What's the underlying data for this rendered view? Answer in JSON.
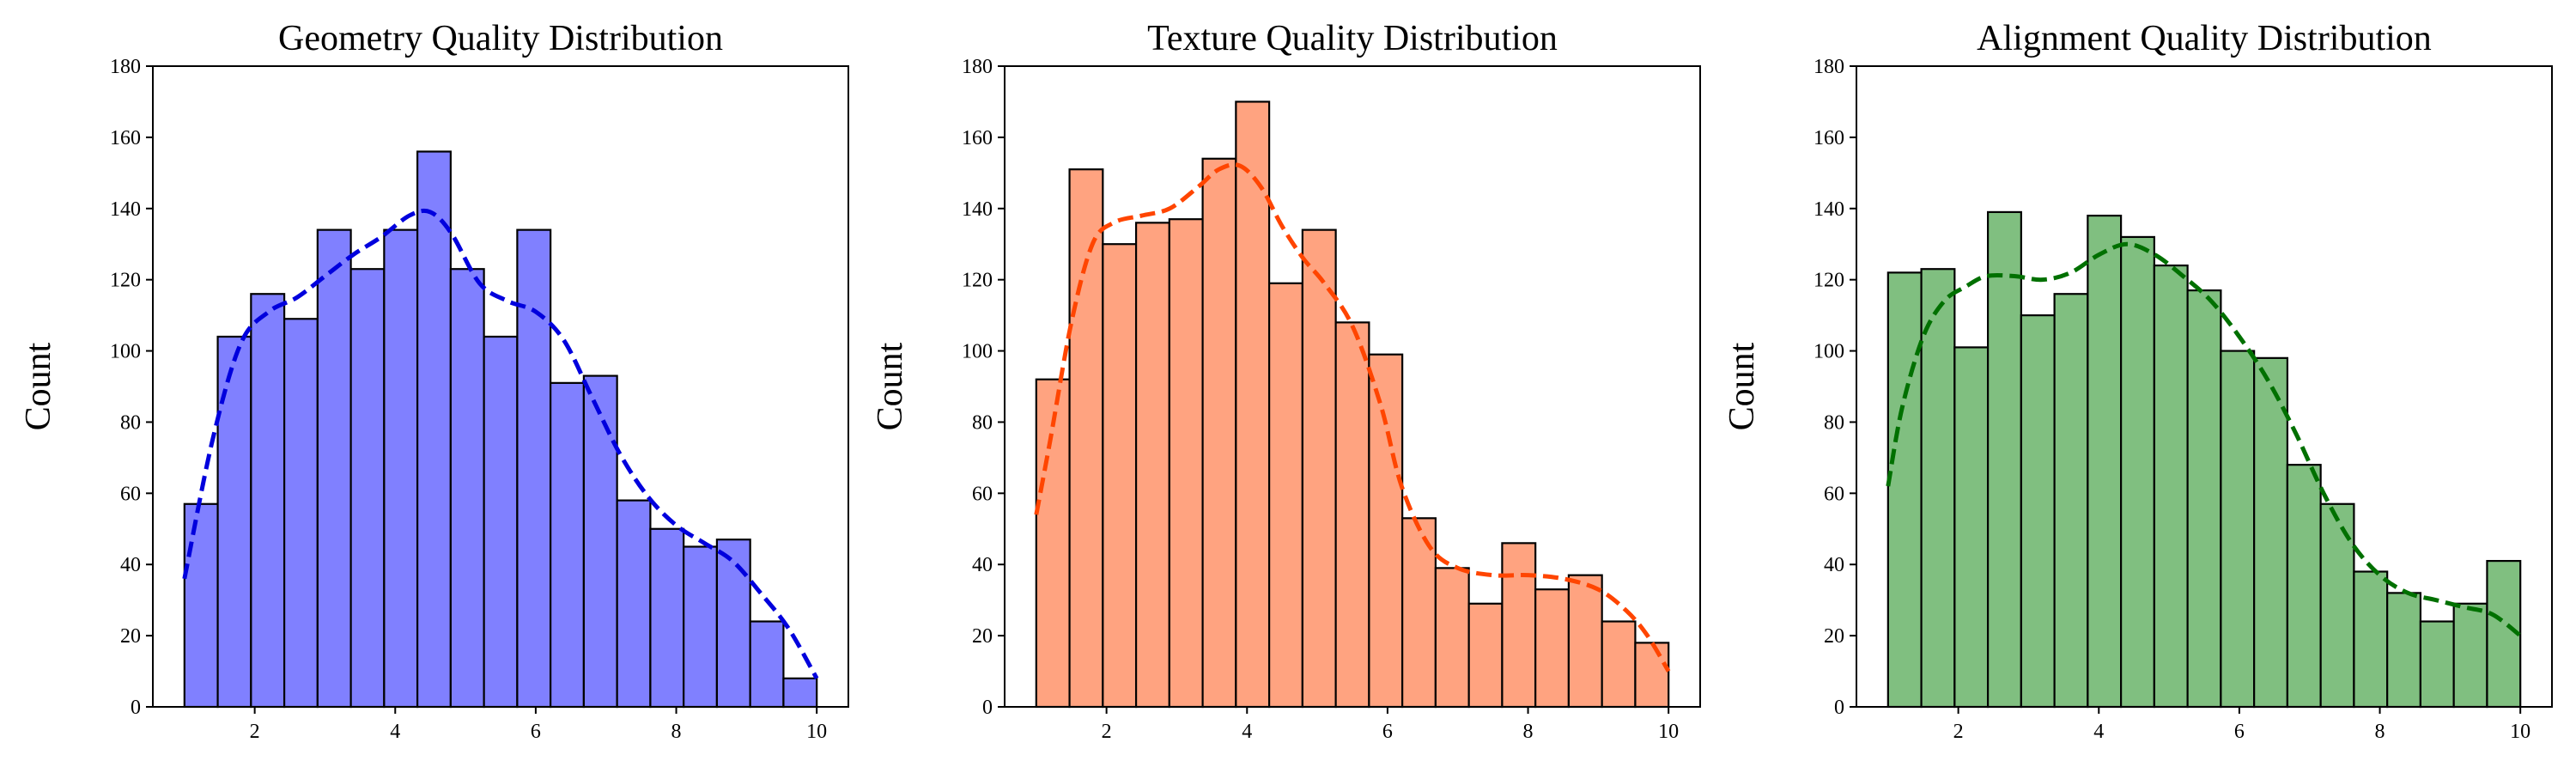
{
  "chart_data": [
    {
      "type": "bar",
      "title": "Geometry Quality Distribution",
      "xlabel": "",
      "ylabel": "Count",
      "xlim": [
        0.55,
        10.45
      ],
      "ylim": [
        0,
        180
      ],
      "x_ticks": [
        2,
        4,
        6,
        8,
        10
      ],
      "y_ticks": [
        0,
        20,
        40,
        60,
        80,
        100,
        120,
        140,
        160,
        180
      ],
      "bin_start": 1,
      "bin_end": 10,
      "counts": [
        57,
        104,
        116,
        109,
        134,
        123,
        134,
        156,
        123,
        104,
        134,
        91,
        93,
        58,
        50,
        45,
        47,
        24,
        8
      ],
      "fill_color": "#8080ff",
      "kde_color": "#0000dd",
      "kde": {
        "x": [
          1.0,
          1.4,
          1.8,
          2.2,
          2.6,
          3.0,
          3.4,
          3.8,
          4.2,
          4.5,
          4.8,
          5.2,
          5.6,
          6.0,
          6.4,
          6.8,
          7.2,
          7.6,
          8.0,
          8.4,
          8.8,
          9.2,
          9.6,
          10.0
        ],
        "y": [
          36,
          75,
          102,
          111,
          115,
          121,
          127,
          132,
          138,
          139,
          133,
          119,
          114,
          111,
          103,
          87,
          71,
          59,
          51,
          46,
          41,
          32,
          22,
          8
        ]
      },
      "grid": false
    },
    {
      "type": "bar",
      "title": "Texture Quality Distribution",
      "xlabel": "",
      "ylabel": "Count",
      "xlim": [
        0.55,
        10.45
      ],
      "ylim": [
        0,
        180
      ],
      "x_ticks": [
        2,
        4,
        6,
        8,
        10
      ],
      "y_ticks": [
        0,
        20,
        40,
        60,
        80,
        100,
        120,
        140,
        160,
        180
      ],
      "bin_start": 1,
      "bin_end": 10,
      "counts": [
        92,
        151,
        130,
        136,
        137,
        154,
        170,
        119,
        134,
        108,
        99,
        53,
        39,
        29,
        46,
        33,
        37,
        24,
        18
      ],
      "fill_color": "#ffa380",
      "kde_color": "#ff4500",
      "kde": {
        "x": [
          1.0,
          1.2,
          1.5,
          1.8,
          2.1,
          2.5,
          2.9,
          3.3,
          3.6,
          3.9,
          4.2,
          4.5,
          4.8,
          5.1,
          5.5,
          5.9,
          6.2,
          6.6,
          7.0,
          7.5,
          8.0,
          8.5,
          9.0,
          9.4,
          9.7,
          10.0
        ],
        "y": [
          54,
          75,
          108,
          130,
          136,
          138,
          140,
          146,
          151,
          152,
          146,
          135,
          126,
          119,
          107,
          85,
          62,
          45,
          39,
          37,
          37,
          36,
          33,
          27,
          20,
          10
        ]
      },
      "grid": false
    },
    {
      "type": "bar",
      "title": "Alignment Quality Distribution",
      "xlabel": "",
      "ylabel": "Count",
      "xlim": [
        0.55,
        10.45
      ],
      "ylim": [
        0,
        180
      ],
      "x_ticks": [
        2,
        4,
        6,
        8,
        10
      ],
      "y_ticks": [
        0,
        20,
        40,
        60,
        80,
        100,
        120,
        140,
        160,
        180
      ],
      "bin_start": 1,
      "bin_end": 10,
      "counts": [
        122,
        123,
        101,
        139,
        110,
        116,
        138,
        132,
        124,
        117,
        100,
        98,
        68,
        57,
        38,
        32,
        24,
        29,
        41
      ],
      "fill_color": "#80bf80",
      "kde_color": "#007000",
      "kde": {
        "x": [
          1.0,
          1.2,
          1.5,
          1.8,
          2.1,
          2.4,
          2.8,
          3.2,
          3.6,
          4.0,
          4.4,
          4.8,
          5.2,
          5.6,
          6.0,
          6.4,
          6.8,
          7.2,
          7.6,
          8.0,
          8.4,
          8.8,
          9.2,
          9.6,
          10.0
        ],
        "y": [
          62,
          84,
          104,
          114,
          118,
          121,
          121,
          120,
          122,
          127,
          130,
          127,
          121,
          114,
          104,
          92,
          77,
          60,
          46,
          37,
          32,
          30,
          28,
          26,
          20
        ]
      },
      "grid": false
    }
  ]
}
